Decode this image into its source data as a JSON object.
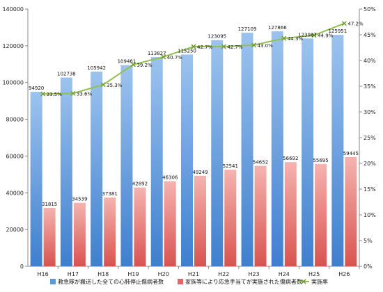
{
  "chart_data": {
    "type": "bar",
    "categories": [
      "H16",
      "H17",
      "H18",
      "H19",
      "H20",
      "H21",
      "H22",
      "H23",
      "H24",
      "H25",
      "H26"
    ],
    "series": [
      {
        "name": "救急隊が搬送した全ての心肺停止傷病者数",
        "type": "bar",
        "axis": "left",
        "color": "#5b9bd5",
        "values": [
          94920,
          102738,
          105942,
          109461,
          113827,
          115250,
          123095,
          127109,
          127866,
          123987,
          125951
        ]
      },
      {
        "name": "家族等により応急手当てが実施された傷病者数",
        "type": "bar",
        "axis": "left",
        "color": "#e06666",
        "values": [
          31815,
          34539,
          37381,
          42892,
          46306,
          49249,
          52541,
          54652,
          56692,
          55695,
          59445
        ]
      },
      {
        "name": "実施率",
        "type": "line",
        "axis": "right",
        "color": "#92c050",
        "values": [
          33.5,
          33.6,
          35.3,
          39.2,
          40.7,
          42.7,
          42.7,
          43.0,
          44.3,
          44.9,
          47.2
        ]
      }
    ],
    "ylim": [
      0,
      140000
    ],
    "yticks": [
      0,
      20000,
      40000,
      60000,
      80000,
      100000,
      120000,
      140000
    ],
    "y2lim": [
      0,
      50
    ],
    "y2ticks": [
      0,
      5,
      10,
      15,
      20,
      25,
      30,
      35,
      40,
      45,
      50
    ],
    "y2_suffix": "%",
    "grid": false,
    "legend": "bottom"
  }
}
